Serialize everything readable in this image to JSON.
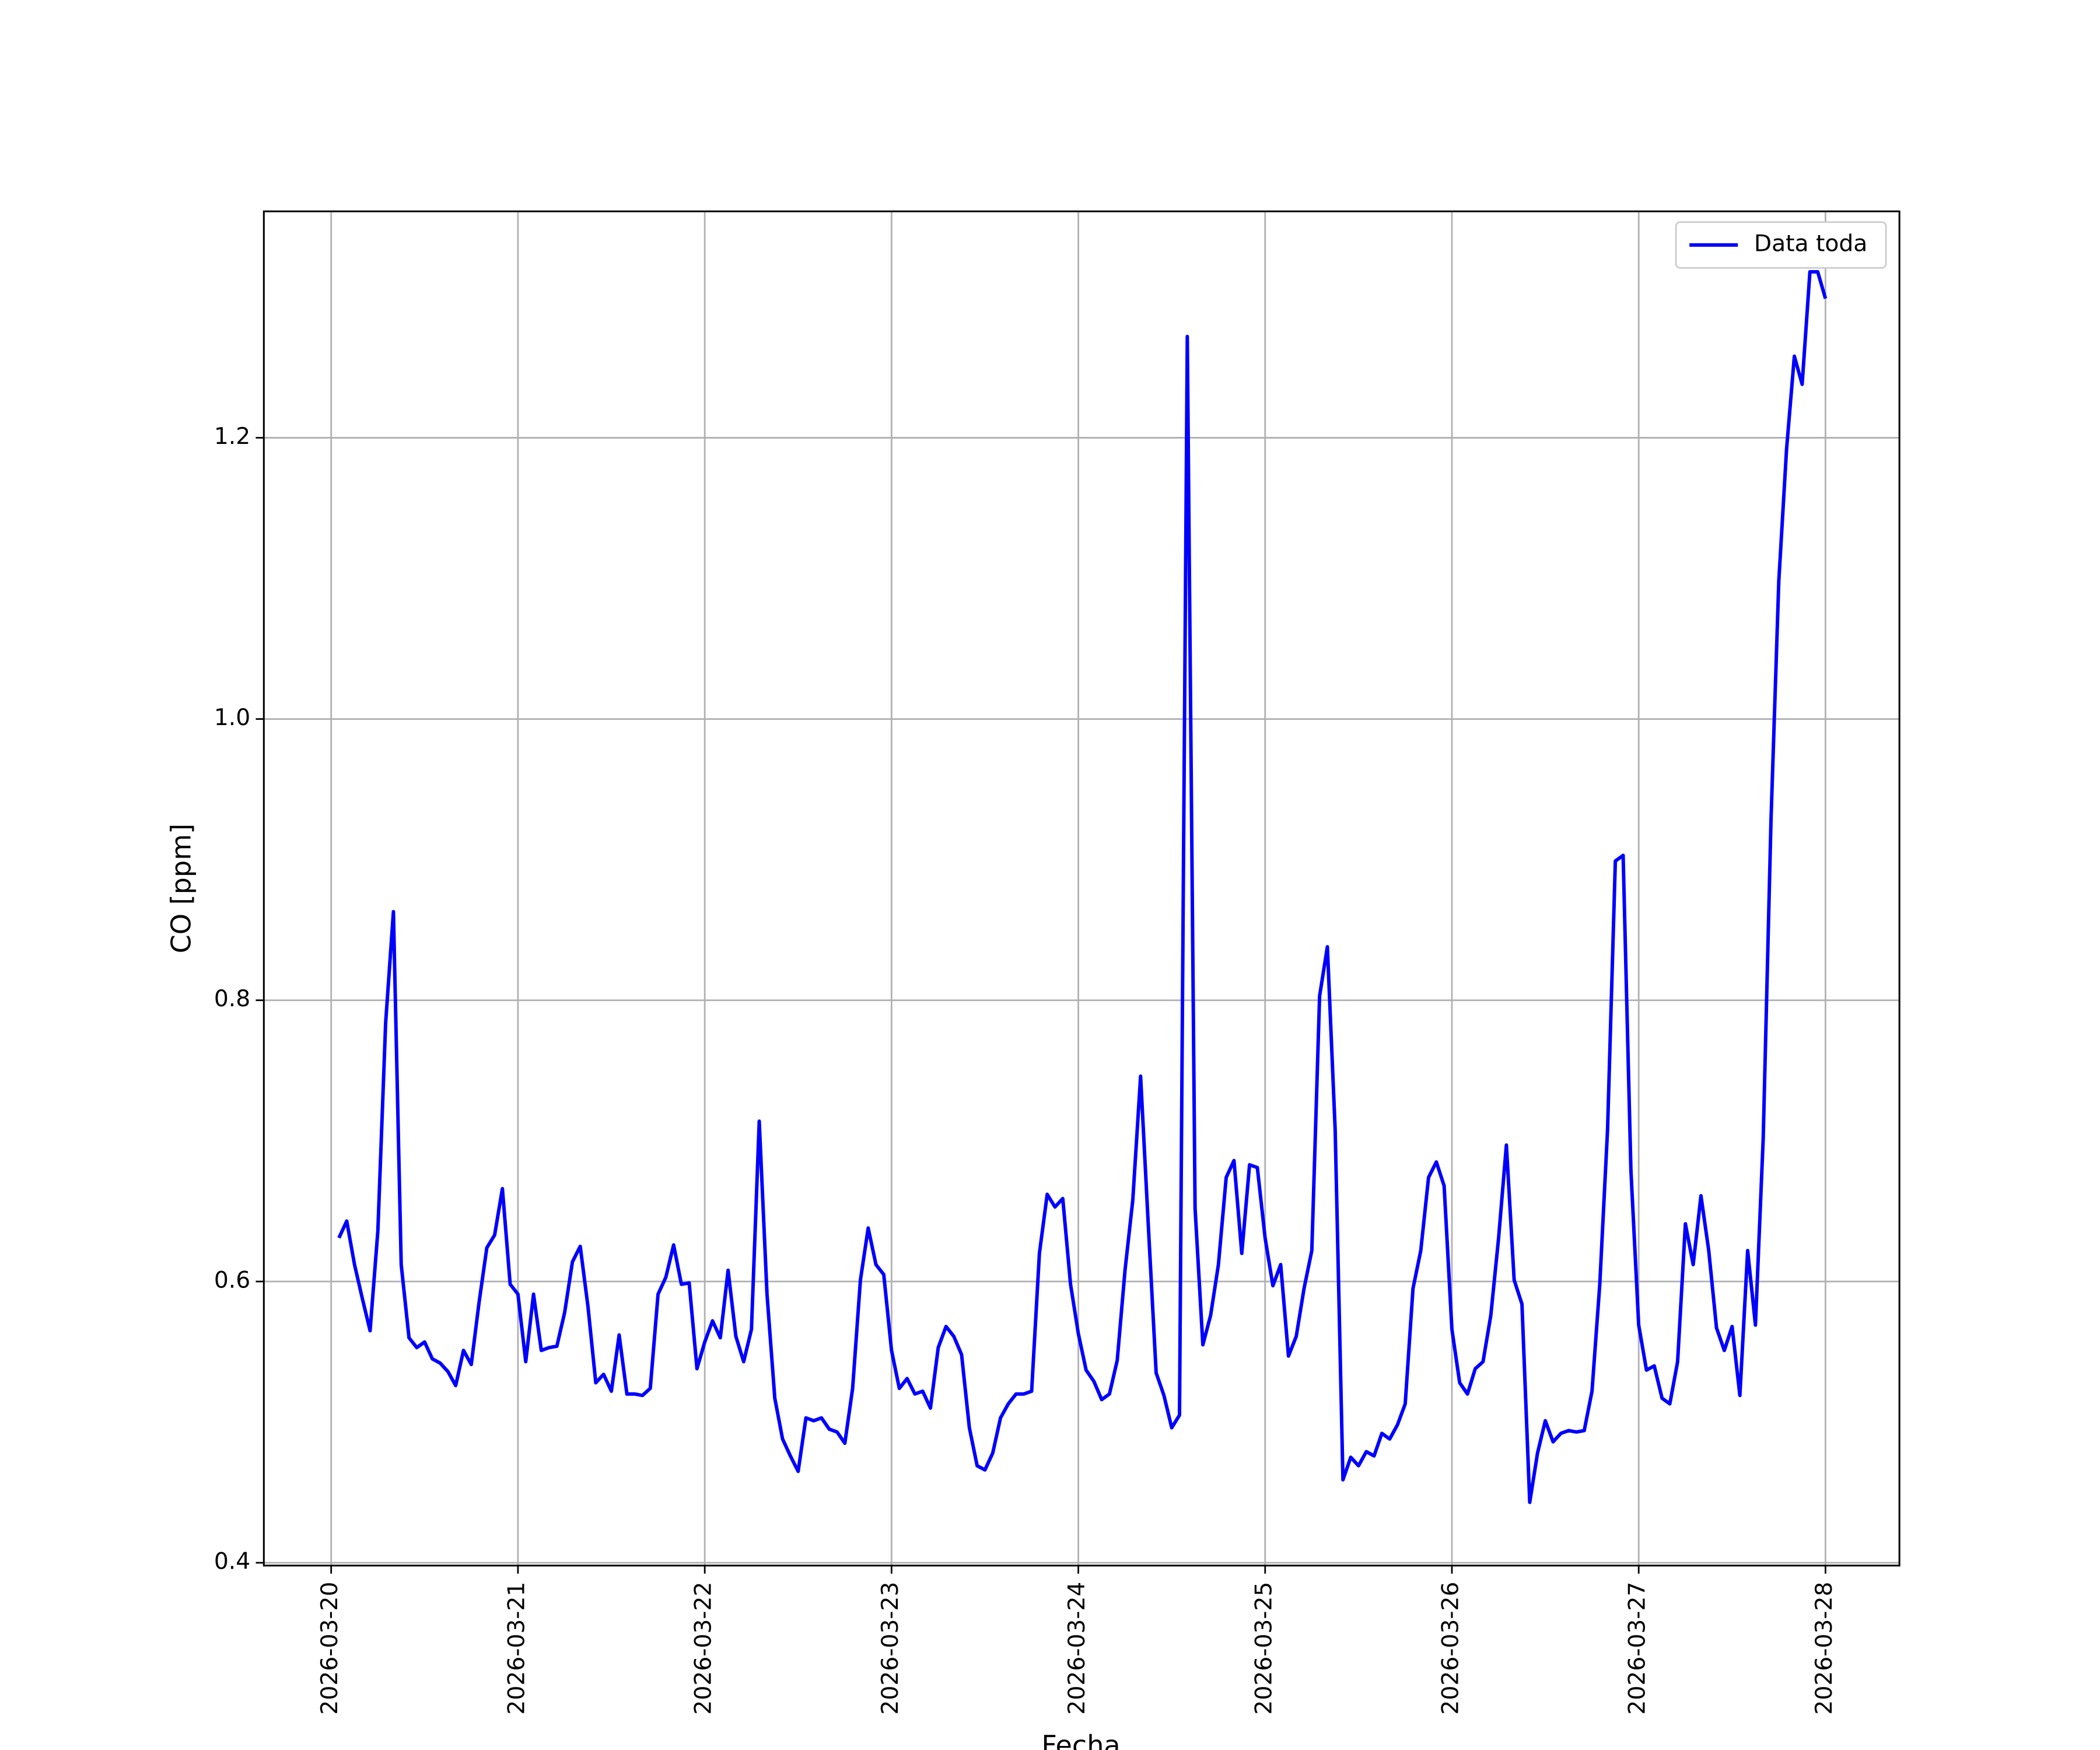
{
  "chart_data": {
    "type": "line",
    "xlabel": "Fecha",
    "ylabel": "CO [ppm]",
    "x": [
      1,
      2,
      3,
      4,
      5,
      6,
      7,
      8,
      9,
      10,
      11,
      12,
      13,
      14,
      15,
      16,
      17,
      18,
      19,
      20,
      21,
      22,
      23,
      24,
      25,
      26,
      27,
      28,
      29,
      30,
      31,
      32,
      33,
      34,
      35,
      36,
      37,
      38,
      39,
      40,
      41,
      42,
      43,
      44,
      45,
      46,
      47,
      48,
      49,
      50,
      51,
      52,
      53,
      54,
      55,
      56,
      57,
      58,
      59,
      60,
      61,
      62,
      63,
      64,
      65,
      66,
      67,
      68,
      69,
      70,
      71,
      72,
      73,
      74,
      75,
      76,
      77,
      78,
      79,
      80,
      81,
      82,
      83,
      84,
      85,
      86,
      87,
      88,
      89,
      90,
      91,
      92,
      93,
      94,
      95,
      96,
      97,
      98,
      99,
      100,
      101,
      102,
      103,
      104,
      105,
      106,
      107,
      108,
      109,
      110,
      111,
      112,
      113,
      114,
      115,
      116,
      117,
      118,
      119,
      120,
      121,
      122,
      123,
      124,
      125,
      126,
      127,
      128,
      129,
      130,
      131,
      132,
      133,
      134,
      135,
      136,
      137,
      138,
      139,
      140,
      141,
      142,
      143,
      144,
      145,
      146,
      147,
      148,
      149,
      150,
      151,
      152,
      153,
      154,
      155,
      156,
      157,
      158,
      159,
      160,
      161,
      162,
      163,
      164,
      165,
      166,
      167,
      168,
      169,
      170,
      171,
      172,
      173,
      174,
      175,
      176,
      177,
      178,
      179,
      180,
      181,
      182,
      183,
      184,
      185,
      186,
      187,
      188,
      189,
      190,
      191,
      192
    ],
    "series": [
      {
        "name": "Data toda",
        "color": "#0000ff",
        "values": [
          0.631,
          0.643,
          0.612,
          0.588,
          0.565,
          0.636,
          0.784,
          0.863,
          0.612,
          0.56,
          0.553,
          0.557,
          0.545,
          0.542,
          0.536,
          0.526,
          0.551,
          0.541,
          0.585,
          0.624,
          0.633,
          0.666,
          0.598,
          0.591,
          0.543,
          0.591,
          0.551,
          0.553,
          0.554,
          0.578,
          0.614,
          0.625,
          0.582,
          0.528,
          0.534,
          0.522,
          0.562,
          0.52,
          0.52,
          0.519,
          0.524,
          0.591,
          0.603,
          0.626,
          0.598,
          0.599,
          0.538,
          0.557,
          0.572,
          0.56,
          0.608,
          0.561,
          0.543,
          0.566,
          0.714,
          0.591,
          0.517,
          0.488,
          0.476,
          0.465,
          0.503,
          0.501,
          0.503,
          0.495,
          0.493,
          0.485,
          0.524,
          0.601,
          0.638,
          0.612,
          0.605,
          0.551,
          0.524,
          0.531,
          0.52,
          0.522,
          0.51,
          0.553,
          0.568,
          0.561,
          0.548,
          0.496,
          0.469,
          0.466,
          0.478,
          0.503,
          0.513,
          0.52,
          0.52,
          0.522,
          0.62,
          0.662,
          0.653,
          0.659,
          0.598,
          0.563,
          0.537,
          0.529,
          0.516,
          0.52,
          0.544,
          0.608,
          0.658,
          0.746,
          0.639,
          0.535,
          0.519,
          0.496,
          0.505,
          1.272,
          0.652,
          0.555,
          0.576,
          0.612,
          0.674,
          0.686,
          0.62,
          0.683,
          0.681,
          0.631,
          0.597,
          0.612,
          0.547,
          0.561,
          0.595,
          0.622,
          0.803,
          0.838,
          0.708,
          0.459,
          0.475,
          0.469,
          0.479,
          0.476,
          0.492,
          0.488,
          0.498,
          0.513,
          0.595,
          0.622,
          0.674,
          0.685,
          0.668,
          0.566,
          0.528,
          0.52,
          0.538,
          0.543,
          0.576,
          0.631,
          0.697,
          0.601,
          0.584,
          0.443,
          0.478,
          0.501,
          0.486,
          0.492,
          0.494,
          0.493,
          0.494,
          0.522,
          0.598,
          0.708,
          0.899,
          0.903,
          0.679,
          0.569,
          0.537,
          0.54,
          0.517,
          0.513,
          0.543,
          0.641,
          0.612,
          0.661,
          0.622,
          0.567,
          0.551,
          0.568,
          0.519,
          0.622,
          0.569,
          0.702,
          0.928,
          1.098,
          1.192,
          1.258,
          1.238,
          1.318,
          1.318,
          1.299
        ]
      }
    ],
    "xlim": [
      -8.65,
      201.5
    ],
    "xticks": [
      {
        "value": 0,
        "label": "2026-03-20"
      },
      {
        "value": 24,
        "label": "2026-03-21"
      },
      {
        "value": 48,
        "label": "2026-03-22"
      },
      {
        "value": 72,
        "label": "2026-03-23"
      },
      {
        "value": 96,
        "label": "2026-03-24"
      },
      {
        "value": 120,
        "label": "2026-03-25"
      },
      {
        "value": 144,
        "label": "2026-03-26"
      },
      {
        "value": 168,
        "label": "2026-03-27"
      },
      {
        "value": 192,
        "label": "2026-03-28"
      }
    ],
    "ylim": [
      0.398,
      1.361
    ],
    "yticks": [
      0.4,
      0.6,
      0.8,
      {
        "value": 1.0,
        "label": "1.0"
      },
      1.2
    ],
    "grid": true,
    "legend": "upper right"
  }
}
